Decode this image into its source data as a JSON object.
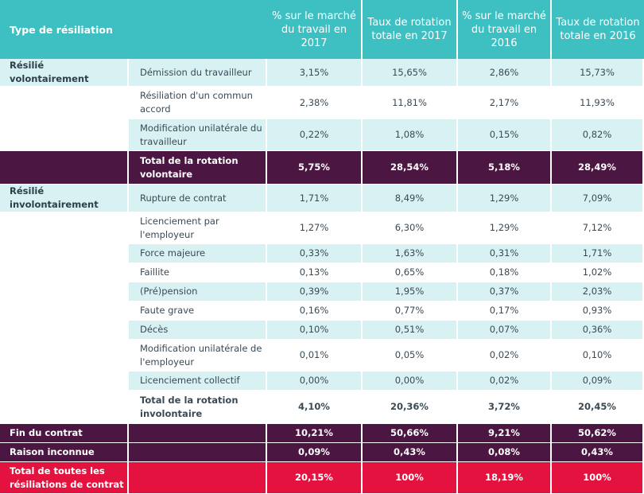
{
  "table": {
    "headers": {
      "type": "Type de résiliation",
      "c1": "% sur le marché du travail en 2017",
      "c2": "Taux de rotation totale en 2017",
      "c3": "% sur le marché du travail en 2016",
      "c4": "Taux de rotation totale en 2016"
    },
    "groups": {
      "vol": "Résilié volontairement",
      "invol": "Résilié involontairement"
    },
    "rows": [
      {
        "label": "Démission du travailleur",
        "v": [
          "3,15%",
          "15,65%",
          "2,86%",
          "15,73%"
        ]
      },
      {
        "label": "Résiliation d'un commun accord",
        "v": [
          "2,38%",
          "11,81%",
          "2,17%",
          "11,93%"
        ]
      },
      {
        "label": "Modification unilatérale du travailleur",
        "v": [
          "0,22%",
          "1,08%",
          "0,15%",
          "0,82%"
        ]
      },
      {
        "label": "Total de la rotation volontaire",
        "v": [
          "5,75%",
          "28,54%",
          "5,18%",
          "28,49%"
        ]
      },
      {
        "label": "Rupture de contrat",
        "v": [
          "1,71%",
          "8,49%",
          "1,29%",
          "7,09%"
        ]
      },
      {
        "label": "Licenciement par l'employeur",
        "v": [
          "1,27%",
          "6,30%",
          "1,29%",
          "7,12%"
        ]
      },
      {
        "label": "Force majeure",
        "v": [
          "0,33%",
          "1,63%",
          "0,31%",
          "1,71%"
        ]
      },
      {
        "label": "Faillite",
        "v": [
          "0,13%",
          "0,65%",
          "0,18%",
          "1,02%"
        ]
      },
      {
        "label": "(Pré)pension",
        "v": [
          "0,39%",
          "1,95%",
          "0,37%",
          "2,03%"
        ]
      },
      {
        "label": "Faute grave",
        "v": [
          "0,16%",
          "0,77%",
          "0,17%",
          "0,93%"
        ]
      },
      {
        "label": "Décès",
        "v": [
          "0,10%",
          "0,51%",
          "0,07%",
          "0,36%"
        ]
      },
      {
        "label": "Modification unilatérale de l'employeur",
        "v": [
          "0,01%",
          "0,05%",
          "0,02%",
          "0,10%"
        ]
      },
      {
        "label": "Licenciement collectif",
        "v": [
          "0,00%",
          "0,00%",
          "0,02%",
          "0,09%"
        ]
      },
      {
        "label": "Total de la rotation involontaire",
        "v": [
          "4,10%",
          "20,36%",
          "3,72%",
          "20,45%"
        ]
      },
      {
        "label": "Fin du contrat",
        "v": [
          "10,21%",
          "50,66%",
          "9,21%",
          "50,62%"
        ]
      },
      {
        "label": "Raison inconnue",
        "v": [
          "0,09%",
          "0,43%",
          "0,08%",
          "0,43%"
        ]
      },
      {
        "label": "Total de toutes les résiliations de contrat",
        "v": [
          "20,15%",
          "100%",
          "18,19%",
          "100%"
        ]
      }
    ]
  },
  "colors": {
    "header": "#3ec0c3",
    "light_row": "#d8f1f3",
    "total_row": "#4c1642",
    "grand_total_row": "#e4123e"
  }
}
